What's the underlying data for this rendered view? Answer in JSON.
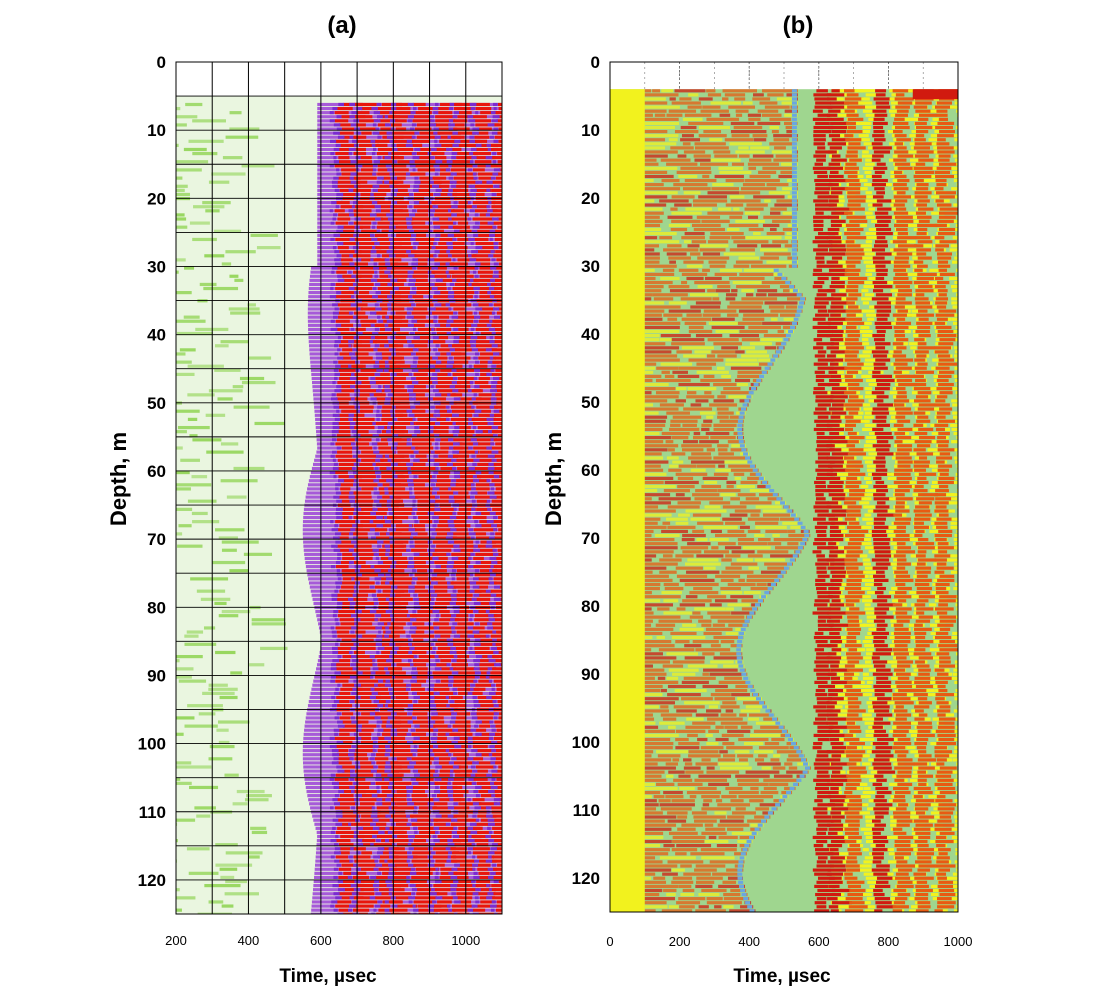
{
  "chart_data": [
    {
      "type": "heatmap",
      "title": "(a)",
      "xlabel": "Time,  µsec",
      "ylabel": "Depth, m",
      "xlim": [
        200,
        1100
      ],
      "ylim": [
        0,
        125
      ],
      "xticks": [
        200,
        400,
        600,
        800,
        1000
      ],
      "yticks": [
        0,
        10,
        20,
        30,
        40,
        50,
        60,
        70,
        80,
        90,
        100,
        110,
        120
      ],
      "grid": true,
      "palette": {
        "background": "#eaf6e0",
        "low": "#8dd34f",
        "mid": "#7a2bd0",
        "high": "#e8160c",
        "fill": "#a65ad8"
      },
      "data_start_depth": 6,
      "first_arrival_time": 590,
      "bands": [
        {
          "time": 650,
          "type": "high"
        },
        {
          "time": 700,
          "type": "high"
        },
        {
          "time": 760,
          "type": "high"
        },
        {
          "time": 800,
          "type": "high"
        },
        {
          "time": 860,
          "type": "high"
        },
        {
          "time": 920,
          "type": "high"
        },
        {
          "time": 970,
          "type": "high"
        },
        {
          "time": 1030,
          "type": "high"
        },
        {
          "time": 1080,
          "type": "high"
        }
      ]
    },
    {
      "type": "heatmap",
      "title": "(b)",
      "xlabel": "Time,  µsec",
      "ylabel": "Depth, m",
      "xlim": [
        0,
        1000
      ],
      "ylim": [
        0,
        125
      ],
      "xticks": [
        0,
        200,
        400,
        600,
        800,
        1000
      ],
      "yticks": [
        0,
        10,
        20,
        30,
        40,
        50,
        60,
        70,
        80,
        90,
        100,
        110,
        120
      ],
      "grid": false,
      "palette": {
        "base": "#9fd68f",
        "warm": "#e85a12",
        "hot": "#d11a0f",
        "yellow": "#f2f21e",
        "cool": "#6aa6e0"
      },
      "blank_until_time": 100,
      "first_arrival_time": 540,
      "bands": [
        {
          "time": 590,
          "type": "hot"
        },
        {
          "time": 630,
          "type": "hot"
        },
        {
          "time": 680,
          "type": "warm"
        },
        {
          "time": 760,
          "type": "hot"
        },
        {
          "time": 820,
          "type": "warm"
        },
        {
          "time": 880,
          "type": "warm"
        },
        {
          "time": 940,
          "type": "warm"
        }
      ]
    }
  ]
}
